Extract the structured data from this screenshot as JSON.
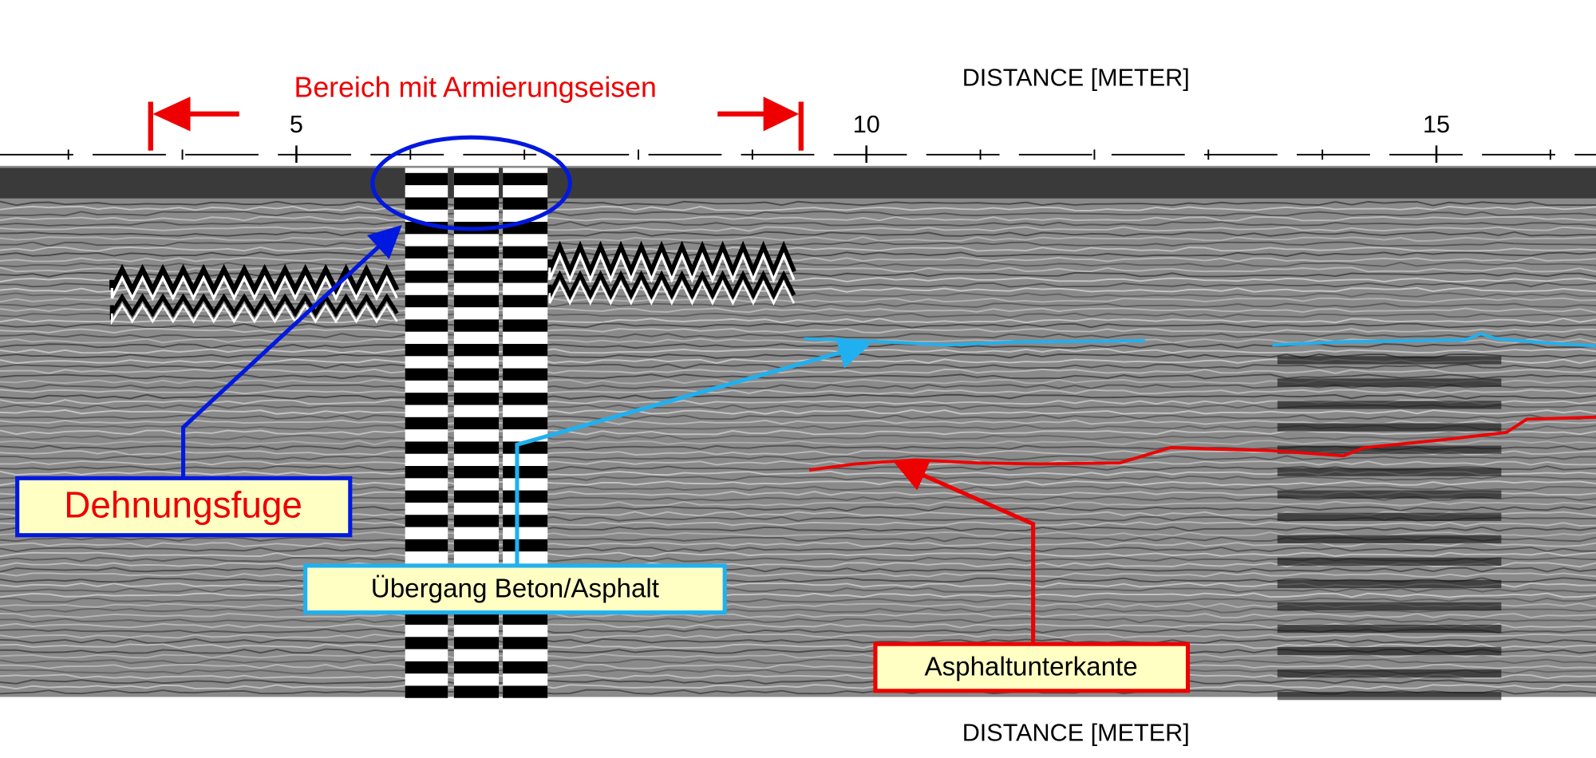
{
  "axis": {
    "label_top": "DISTANCE [METER]",
    "label_bottom": "DISTANCE [METER]",
    "xlim": [
      2.4,
      16.4
    ],
    "ticks": [
      5,
      10,
      15
    ],
    "minor_ticks": [
      3,
      4,
      6,
      7,
      8,
      9,
      11,
      12,
      13,
      14,
      16
    ]
  },
  "annotations": {
    "range": "Bereich mit Armierungseisen",
    "joint": "Dehnungsfuge",
    "transition": "Übergang Beton/Asphalt",
    "asphalt_bottom": "Asphaltunterkante"
  }
}
